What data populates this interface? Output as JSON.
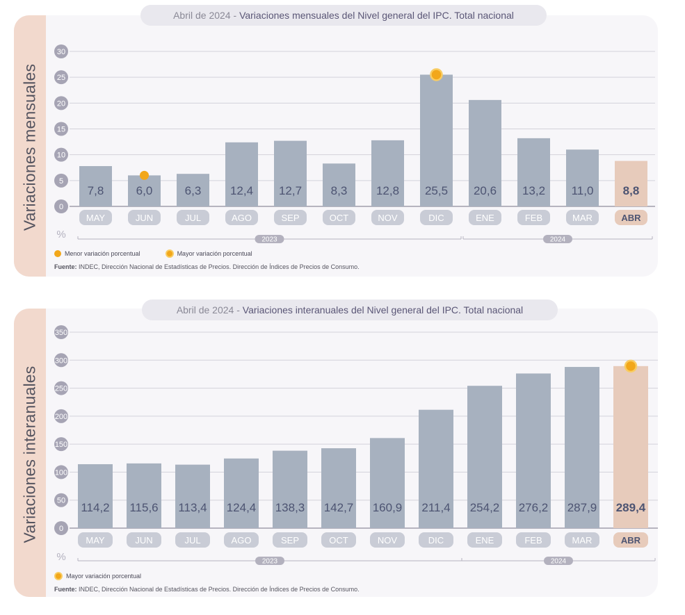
{
  "charts": [
    {
      "title_date": "Abril de 2024",
      "title_sep": " - ",
      "title_main": "Variaciones mensuales del Nivel general del IPC. Total nacional",
      "side_label": "Variaciones mensuales",
      "unit": "%",
      "legend": [
        {
          "label": "Menor variación porcentual",
          "marker": "dot"
        },
        {
          "label": "Mayor variación porcentual",
          "marker": "ring"
        }
      ],
      "source_bold": "Fuente:",
      "source_text": " INDEC, Dirección Nacional de Estadísticas de Precios. Dirección de Índices de Precios de Consumo."
    },
    {
      "title_date": "Abril de 2024",
      "title_sep": " - ",
      "title_main": "Variaciones interanuales del Nivel general del IPC. Total nacional",
      "side_label": "Variaciones interanuales",
      "unit": "%",
      "legend": [
        {
          "label": "Mayor variación porcentual",
          "marker": "ring"
        }
      ],
      "source_bold": "Fuente:",
      "source_text": " INDEC, Dirección Nacional de Estadísticas de Precios. Dirección de Índices de Precios de Consumo."
    }
  ],
  "chart_data": [
    {
      "type": "bar",
      "categories": [
        "MAY",
        "JUN",
        "JUL",
        "AGO",
        "SEP",
        "OCT",
        "NOV",
        "DIC",
        "ENE",
        "FEB",
        "MAR",
        "ABR"
      ],
      "values": [
        7.8,
        6.0,
        6.3,
        12.4,
        12.7,
        8.3,
        12.8,
        25.5,
        20.6,
        13.2,
        11.0,
        8.8
      ],
      "value_labels": [
        "7,8",
        "6,0",
        "6,3",
        "12,4",
        "12,7",
        "8,3",
        "12,8",
        "25,5",
        "20,6",
        "13,2",
        "11,0",
        "8,8"
      ],
      "title": "Variaciones mensuales del Nivel general del IPC. Total nacional",
      "ylabel": "%",
      "ylim": [
        0,
        30
      ],
      "yticks": [
        0,
        5,
        10,
        15,
        20,
        25,
        30
      ],
      "grid": true,
      "year_groups": [
        {
          "label": "2023",
          "from": "MAY",
          "to": "DIC"
        },
        {
          "label": "2024",
          "from": "ENE",
          "to": "ABR"
        }
      ],
      "highlight_category": "ABR",
      "min_marker": "JUN",
      "max_marker": "DIC",
      "colors": {
        "bar": "#a7b1bf",
        "highlight": "#e7cbbb",
        "marker": "#f2a71a",
        "tick_pill": "#a6a4b4"
      }
    },
    {
      "type": "bar",
      "categories": [
        "MAY",
        "JUN",
        "JUL",
        "AGO",
        "SEP",
        "OCT",
        "NOV",
        "DIC",
        "ENE",
        "FEB",
        "MAR",
        "ABR"
      ],
      "values": [
        114.2,
        115.6,
        113.4,
        124.4,
        138.3,
        142.7,
        160.9,
        211.4,
        254.2,
        276.2,
        287.9,
        289.4
      ],
      "value_labels": [
        "114,2",
        "115,6",
        "113,4",
        "124,4",
        "138,3",
        "142,7",
        "160,9",
        "211,4",
        "254,2",
        "276,2",
        "287,9",
        "289,4"
      ],
      "title": "Variaciones interanuales del Nivel general del IPC. Total nacional",
      "ylabel": "%",
      "ylim": [
        0,
        350
      ],
      "yticks": [
        0,
        50,
        100,
        150,
        200,
        250,
        300,
        350
      ],
      "grid": true,
      "year_groups": [
        {
          "label": "2023",
          "from": "MAY",
          "to": "DIC"
        },
        {
          "label": "2024",
          "from": "ENE",
          "to": "ABR"
        }
      ],
      "highlight_category": "ABR",
      "max_marker": "ABR",
      "colors": {
        "bar": "#a7b1bf",
        "highlight": "#e7cbbb",
        "marker": "#f2a71a",
        "tick_pill": "#a6a4b4"
      }
    }
  ]
}
